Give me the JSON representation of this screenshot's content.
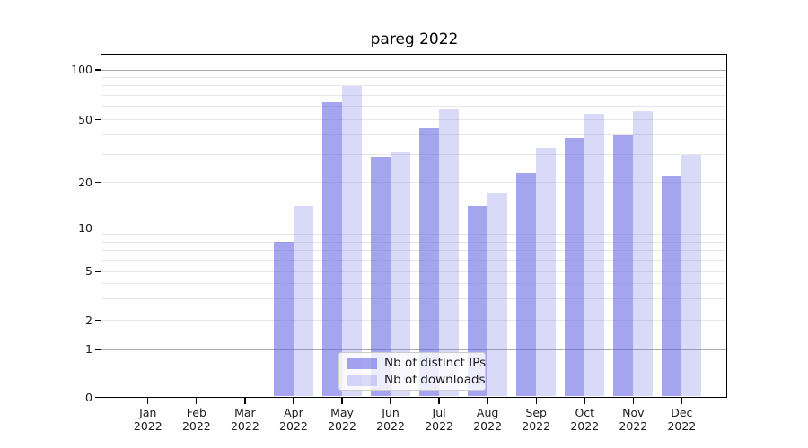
{
  "figure": {
    "title": "pareg 2022",
    "background": "#ffffff"
  },
  "chart_data": {
    "type": "bar",
    "title": "pareg 2022",
    "xlabel": "",
    "ylabel": "",
    "categories": [
      "Jan 2022",
      "Feb 2022",
      "Mar 2022",
      "Apr 2022",
      "May 2022",
      "Jun 2022",
      "Jul 2022",
      "Aug 2022",
      "Sep 2022",
      "Oct 2022",
      "Nov 2022",
      "Dec 2022"
    ],
    "x_tick_months": [
      "Jan",
      "Feb",
      "Mar",
      "Apr",
      "May",
      "Jun",
      "Jul",
      "Aug",
      "Sep",
      "Oct",
      "Nov",
      "Dec"
    ],
    "x_tick_year": "2022",
    "series": [
      {
        "name": "Nb of distinct IPs",
        "color_solid": "#a4a4ee",
        "fill_rgba": "rgba(90,90,225,0.55)",
        "values": [
          0,
          0,
          0,
          8,
          64,
          29,
          44,
          14,
          23,
          38,
          40,
          22
        ]
      },
      {
        "name": "Nb of downloads",
        "color_solid": "#d9d9f8",
        "fill_rgba": "rgba(90,90,225,0.23)",
        "values": [
          0,
          0,
          0,
          14,
          80,
          31,
          58,
          17,
          33,
          54,
          56,
          30
        ]
      }
    ],
    "y_axis": {
      "scale": "symlog",
      "ticks": [
        0,
        1,
        2,
        5,
        10,
        20,
        50,
        100
      ],
      "major_gridlines": [
        1,
        10,
        100
      ],
      "minor_gridlines": [
        2,
        3,
        4,
        5,
        6,
        7,
        8,
        9,
        20,
        30,
        40,
        50,
        60,
        70,
        80,
        90
      ],
      "ylim": [
        0,
        125
      ]
    },
    "grid": "both",
    "legend_position": "lower center"
  },
  "colors": {
    "grid_major": "#adadad",
    "grid_minor": "#e8e8e8",
    "spine": "#000000",
    "legend_border": "#cccccc",
    "legend_bg": "rgba(255,255,255,0.8)"
  }
}
